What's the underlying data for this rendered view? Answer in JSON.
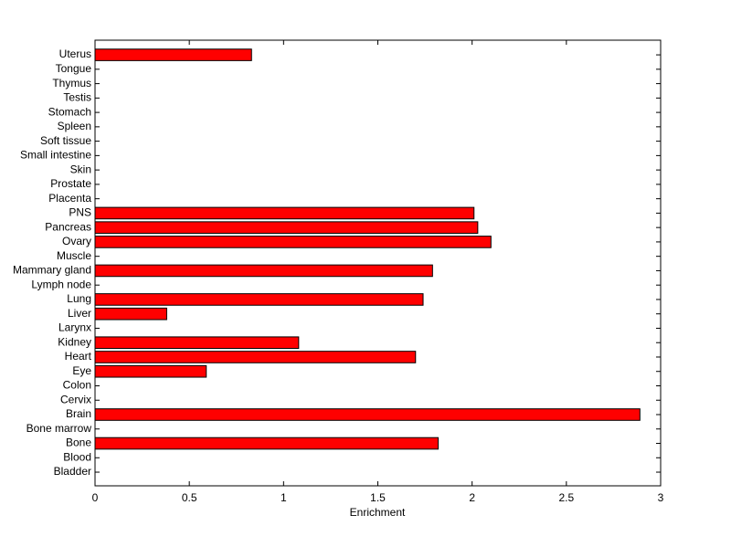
{
  "chart_data": {
    "type": "barh",
    "xlabel": "Enrichment",
    "categories": [
      "Bladder",
      "Blood",
      "Bone",
      "Bone marrow",
      "Brain",
      "Cervix",
      "Colon",
      "Eye",
      "Heart",
      "Kidney",
      "Larynx",
      "Liver",
      "Lung",
      "Lymph node",
      "Mammary gland",
      "Muscle",
      "Ovary",
      "Pancreas",
      "PNS",
      "Placenta",
      "Prostate",
      "Skin",
      "Small intestine",
      "Soft tissue",
      "Spleen",
      "Stomach",
      "Testis",
      "Thymus",
      "Tongue",
      "Uterus"
    ],
    "values": [
      0,
      0,
      1.82,
      0,
      2.89,
      0,
      0,
      0.59,
      1.7,
      1.08,
      0,
      0.38,
      1.74,
      0,
      1.79,
      0,
      2.1,
      2.03,
      2.01,
      0,
      0,
      0,
      0,
      0,
      0,
      0,
      0,
      0,
      0,
      0.83
    ],
    "color": "#ff0000",
    "xlim": [
      0,
      3
    ],
    "xticks": [
      0,
      0.5,
      1,
      1.5,
      2,
      2.5,
      3
    ]
  }
}
